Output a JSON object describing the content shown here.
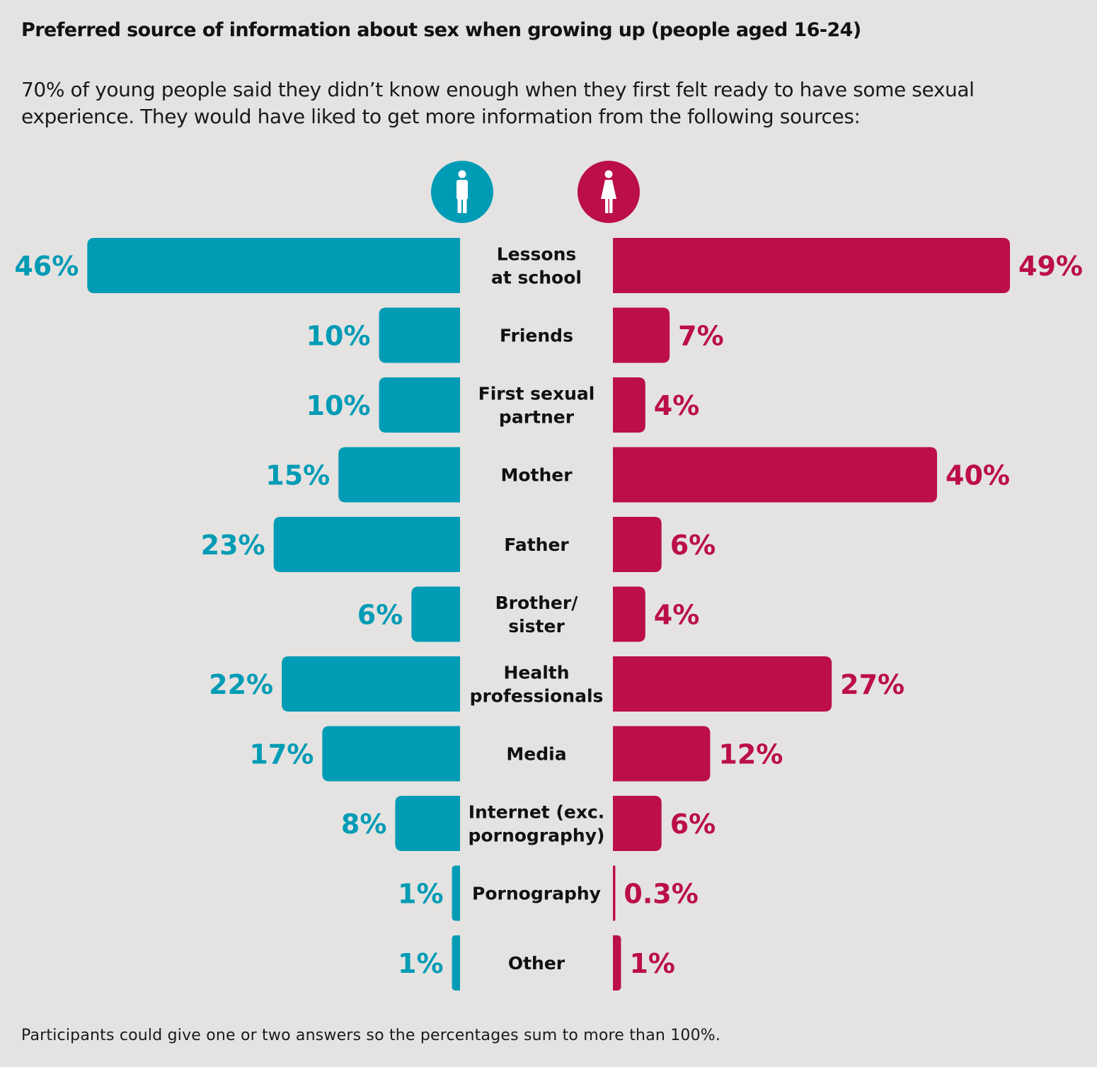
{
  "title": "Preferred source of information about sex when growing up (people aged 16-24)",
  "subtitle": "70% of young people said they didn’t know enough when they first felt ready to have some sexual experience. They would have liked to get more information from the following sources:",
  "footnote": "Participants could give one or two answers so the percentages sum to more than 100%.",
  "icons": {
    "male": "male-icon",
    "female": "female-icon"
  },
  "colors": {
    "male": "#009bb5",
    "female": "#bb0e4a",
    "background": "#e4e3e1"
  },
  "chart_data": {
    "type": "bar",
    "orientation": "horizontal-butterfly",
    "title": "Preferred source of information about sex when growing up (people aged 16-24)",
    "categories": [
      [
        "Lessons",
        "at school"
      ],
      [
        "Friends"
      ],
      [
        "First sexual",
        "partner"
      ],
      [
        "Mother"
      ],
      [
        "Father"
      ],
      [
        "Brother/",
        "sister"
      ],
      [
        "Health",
        "professionals"
      ],
      [
        "Media"
      ],
      [
        "Internet (exc.",
        "pornography)"
      ],
      [
        "Pornography"
      ],
      [
        "Other"
      ]
    ],
    "series": [
      {
        "key": "male",
        "values": [
          46,
          10,
          10,
          15,
          23,
          6,
          22,
          17,
          8,
          1,
          1
        ],
        "labels": [
          "46%",
          "10%",
          "10%",
          "15%",
          "23%",
          "6%",
          "22%",
          "17%",
          "8%",
          "1%",
          "1%"
        ]
      },
      {
        "key": "female",
        "values": [
          49,
          7,
          4,
          40,
          6,
          4,
          27,
          12,
          6,
          0.3,
          1
        ],
        "labels": [
          "49%",
          "7%",
          "4%",
          "40%",
          "6%",
          "4%",
          "27%",
          "12%",
          "6%",
          "0.3%",
          "1%"
        ]
      }
    ],
    "xlim": [
      0,
      49
    ],
    "unit": "%"
  }
}
